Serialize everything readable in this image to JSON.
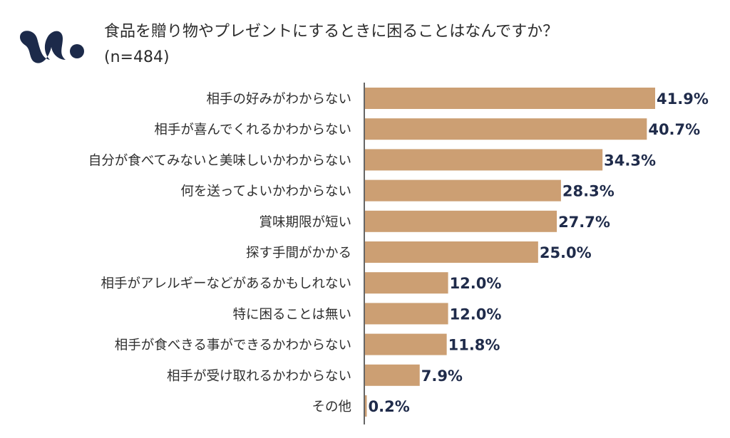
{
  "title": "食品を贈り物やプレゼントにするときに困ることはなんですか？",
  "subtitle": "(n=484)",
  "colors": {
    "bar": "#cc9f73",
    "axis": "#333333",
    "logo": "#1c2a4a"
  },
  "logo": {
    "icon": "brand-logo-icon"
  },
  "chart_data": {
    "type": "bar",
    "orientation": "horizontal",
    "categories": [
      "相手の好みがわからない",
      "相手が喜んでくれるかわからない",
      "自分が食べてみないと美味しいかわからない",
      "何を送ってよいかわからない",
      "賞味期限が短い",
      "探す手間がかかる",
      "相手がアレルギーなどがあるかもしれない",
      "特に困ることは無い",
      "相手が食べきる事ができるかわからない",
      "相手が受け取れるかわからない",
      "その他"
    ],
    "values": [
      41.9,
      40.7,
      34.3,
      28.3,
      27.7,
      25.0,
      12.0,
      12.0,
      11.8,
      7.9,
      0.2
    ],
    "value_labels": [
      "41.9%",
      "40.7%",
      "34.3%",
      "28.3%",
      "27.7%",
      "25.0%",
      "12.0%",
      "12.0%",
      "11.8%",
      "7.9%",
      "0.2%"
    ],
    "xlim": [
      0,
      41.9
    ],
    "unit": "%"
  }
}
